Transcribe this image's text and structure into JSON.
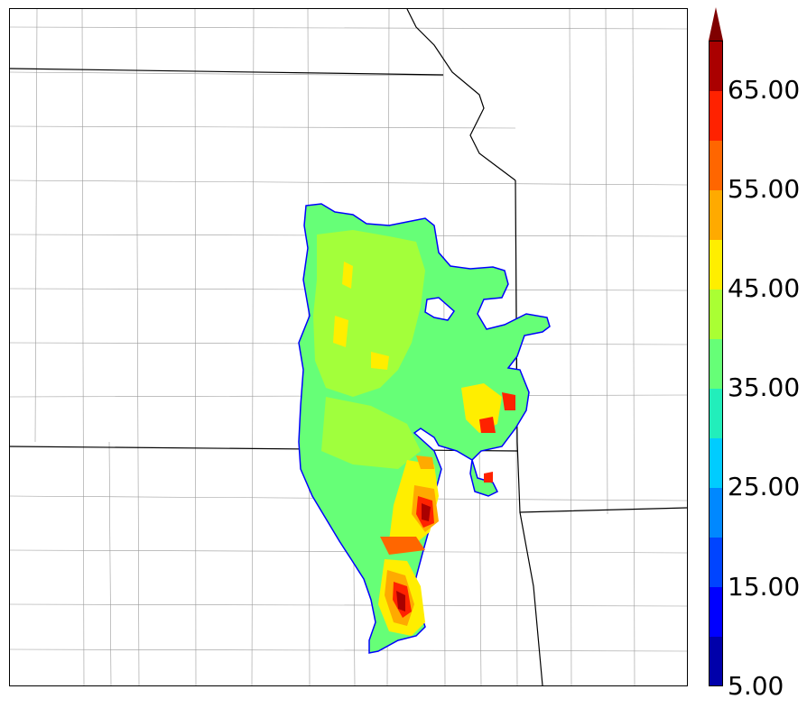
{
  "colorbar": {
    "colors": [
      "#0000aa",
      "#0000ff",
      "#0044ff",
      "#0088ff",
      "#00ccff",
      "#22eebb",
      "#66ff77",
      "#aaff33",
      "#ffee00",
      "#ffaa00",
      "#ff6600",
      "#ff2200",
      "#aa0000"
    ],
    "extend_color": "#800000",
    "labels": [
      "5.00",
      "15.00",
      "25.00",
      "35.00",
      "45.00",
      "55.00",
      "65.00"
    ]
  }
}
